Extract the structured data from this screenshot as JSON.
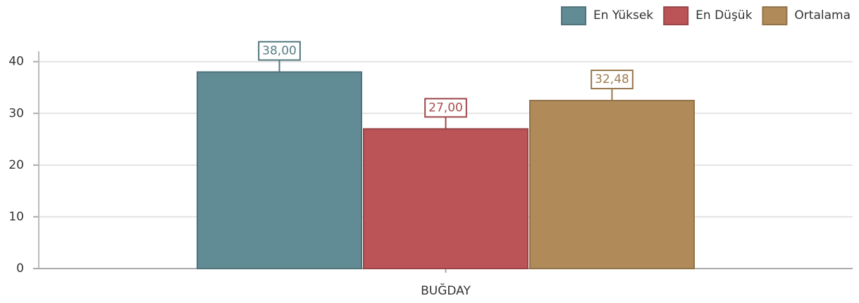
{
  "chart_data": {
    "type": "bar",
    "categories": [
      "BUĞDAY"
    ],
    "series": [
      {
        "name": "En Yüksek",
        "color": "#618c95",
        "values": [
          38
        ],
        "value_labels": [
          "38,00"
        ]
      },
      {
        "name": "En Düşük",
        "color": "#bb5457",
        "values": [
          27
        ],
        "value_labels": [
          "27,00"
        ]
      },
      {
        "name": "Ortalama",
        "color": "#b08b59",
        "values": [
          32.48
        ],
        "value_labels": [
          "32,48"
        ]
      }
    ],
    "ylim": [
      0,
      42
    ],
    "yticks": [
      0,
      10,
      20,
      30,
      40
    ],
    "grid": true,
    "legend": "top-right"
  }
}
